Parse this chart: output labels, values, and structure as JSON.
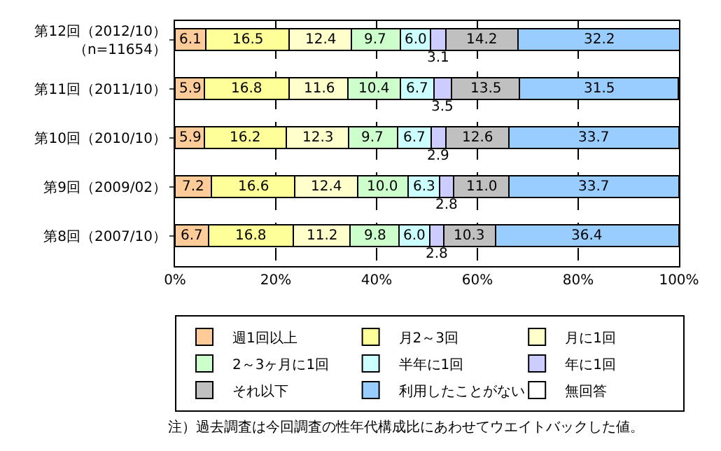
{
  "chart_data": {
    "type": "bar",
    "orientation": "horizontal",
    "stacked": true,
    "grid": "x",
    "legend": "bottom",
    "categories": [
      "第12回（2012/10）（n=11654）",
      "第11回（2011/10）",
      "第10回（2010/10）",
      "第9回（2009/02）",
      "第8回（2007/10）"
    ],
    "xlim": [
      0,
      100
    ],
    "xticks": [
      {
        "value": 0,
        "label": "0%"
      },
      {
        "value": 20,
        "label": "20%"
      },
      {
        "value": 40,
        "label": "40%"
      },
      {
        "value": 60,
        "label": "60%"
      },
      {
        "value": 80,
        "label": "80%"
      },
      {
        "value": 100,
        "label": "100%"
      }
    ],
    "series": [
      {
        "name": "週1回以上",
        "color": "#ffcc99",
        "values": [
          6.1,
          5.9,
          5.9,
          7.2,
          6.7
        ],
        "value_labels": [
          "6.1",
          "5.9",
          "5.9",
          "7.2",
          "6.7"
        ]
      },
      {
        "name": "月2～3回",
        "color": "#ffff99",
        "values": [
          16.5,
          16.8,
          16.2,
          16.6,
          16.8
        ],
        "value_labels": [
          "16.5",
          "16.8",
          "16.2",
          "16.6",
          "16.8"
        ]
      },
      {
        "name": "月に1回",
        "color": "#ffffcc",
        "values": [
          12.4,
          11.6,
          12.3,
          12.4,
          11.2
        ],
        "value_labels": [
          "12.4",
          "11.6",
          "12.3",
          "12.4",
          "11.2"
        ]
      },
      {
        "name": "2～3ヶ月に1回",
        "color": "#ccffcc",
        "values": [
          9.7,
          10.4,
          9.7,
          10.0,
          9.8
        ],
        "value_labels": [
          "9.7",
          "10.4",
          "9.7",
          "10.0",
          "9.8"
        ]
      },
      {
        "name": "半年に1回",
        "color": "#ccffff",
        "values": [
          6.0,
          6.7,
          6.7,
          6.3,
          6.0
        ],
        "value_labels": [
          "6.0",
          "6.7",
          "6.7",
          "6.3",
          "6.0"
        ]
      },
      {
        "name": "年に1回",
        "color": "#ccccff",
        "values": [
          3.1,
          3.5,
          2.9,
          2.8,
          2.8
        ],
        "value_labels": [
          "3.1",
          "3.5",
          "2.9",
          "2.8",
          "2.8"
        ]
      },
      {
        "name": "それ以下",
        "color": "#c0c0c0",
        "values": [
          14.2,
          13.5,
          12.6,
          11.0,
          10.3
        ],
        "value_labels": [
          "14.2",
          "13.5",
          "12.6",
          "11.0",
          "10.3"
        ]
      },
      {
        "name": "利用したことがない",
        "color": "#99ccff",
        "values": [
          32.2,
          31.5,
          33.7,
          33.7,
          36.4
        ],
        "value_labels": [
          "32.2",
          "31.5",
          "33.7",
          "33.7",
          "36.4"
        ]
      },
      {
        "name": "無回答",
        "color": "#ffffff",
        "values": [
          null,
          null,
          null,
          null,
          null
        ]
      }
    ],
    "annotations": [
      "注）過去調査は今回調査の性年代構成比にあわせてウエイトバックした値。"
    ]
  }
}
